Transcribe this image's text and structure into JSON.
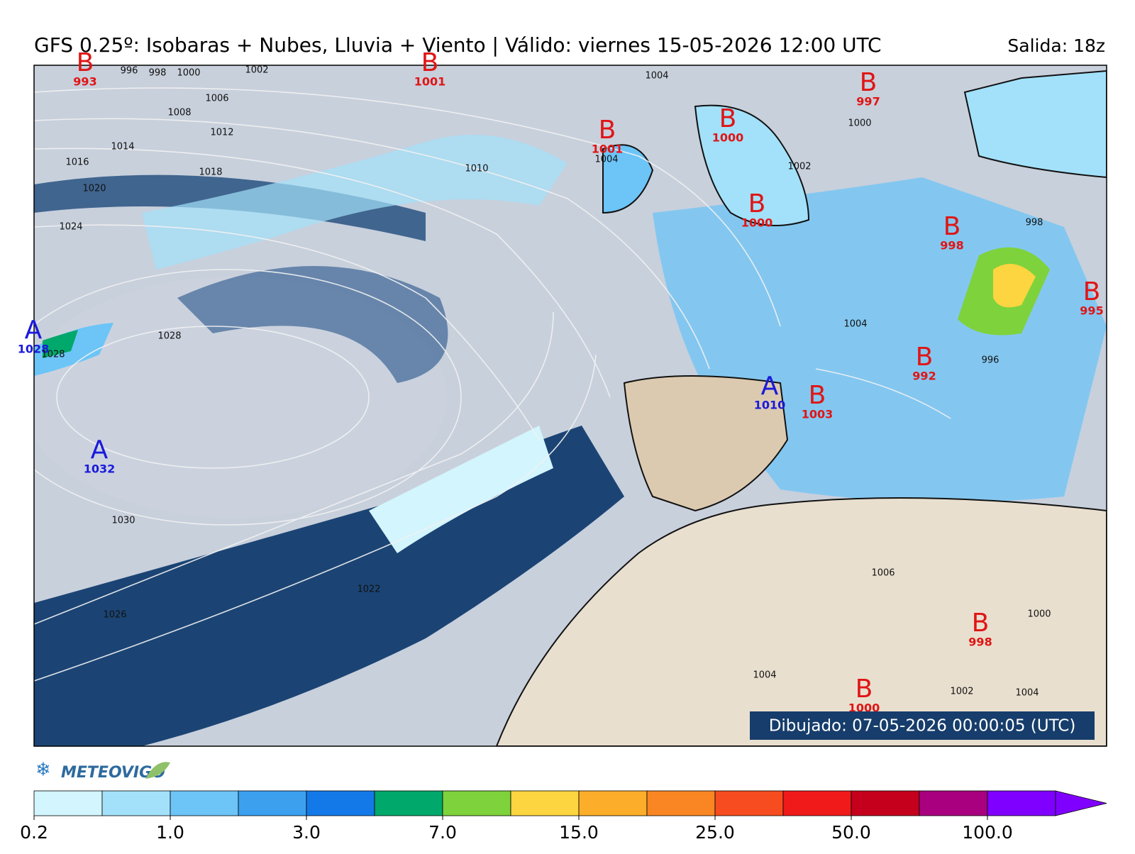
{
  "header": {
    "title": "GFS 0.25º: Isobaras + Nubes, Lluvia + Viento | Válido: viernes 15-05-2026 12:00 UTC",
    "run": "Salida: 18z"
  },
  "map": {
    "centers": [
      {
        "letter": "B",
        "value": 993
      },
      {
        "letter": "B",
        "value": 1001
      },
      {
        "letter": "B",
        "value": 1001
      },
      {
        "letter": "B",
        "value": 1000
      },
      {
        "letter": "B",
        "value": 997
      },
      {
        "letter": "B",
        "value": 1000
      },
      {
        "letter": "B",
        "value": 998
      },
      {
        "letter": "B",
        "value": 995
      },
      {
        "letter": "B",
        "value": 992
      },
      {
        "letter": "A",
        "value": 1010
      },
      {
        "letter": "B",
        "value": 1003
      },
      {
        "letter": "A",
        "value": 1028
      },
      {
        "letter": "A",
        "value": 1032
      },
      {
        "letter": "B",
        "value": 998
      },
      {
        "letter": "B",
        "value": 1000
      }
    ],
    "isobar_labels": [
      996,
      998,
      1000,
      1002,
      1006,
      1008,
      1012,
      1014,
      1016,
      1018,
      1020,
      1024,
      1028,
      1028,
      1030,
      1026,
      1022,
      1010,
      1004,
      1002,
      1000,
      1004,
      1004,
      996,
      1006,
      1004,
      1000,
      1002,
      1004,
      998
    ],
    "drawn": "Dibujado: 07-05-2026 00:00:05 (UTC)"
  },
  "logo": "METEOVIGO",
  "colorbar": {
    "colors": [
      "#d3f5fd",
      "#a3e1fa",
      "#6cc4f7",
      "#3ca0ef",
      "#1479e8",
      "#00a86b",
      "#7ed23c",
      "#fcd540",
      "#fcae2a",
      "#f98622",
      "#f64c1f",
      "#f01a1a",
      "#c4001c",
      "#a8007e",
      "#8000ff"
    ],
    "ticks": [
      "0.2",
      "1.0",
      "3.0",
      "7.0",
      "15.0",
      "25.0",
      "50.0",
      "100.0"
    ]
  }
}
